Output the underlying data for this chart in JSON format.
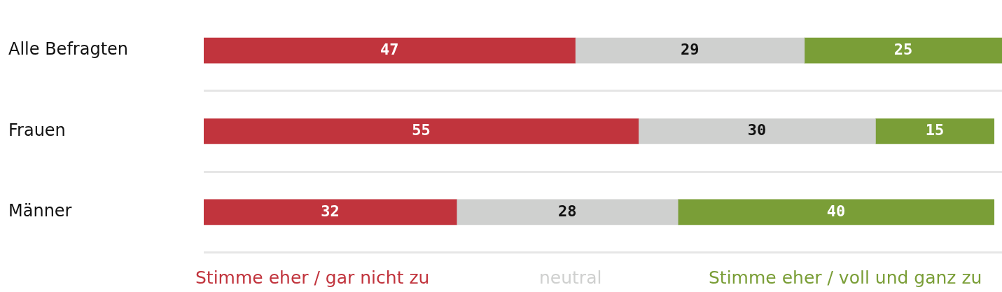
{
  "chart_data": {
    "type": "bar",
    "orientation": "horizontal",
    "stacked": true,
    "categories": [
      "Alle Befragten",
      "Frauen",
      "Männer"
    ],
    "series": [
      {
        "name": "Stimme eher / gar nicht zu",
        "color": "#c1343d",
        "values": [
          47,
          55,
          32
        ]
      },
      {
        "name": "neutral",
        "color": "#cfd0cf",
        "values": [
          29,
          30,
          28
        ]
      },
      {
        "name": "Stimme eher / voll und ganz zu",
        "color": "#7a9e37",
        "values": [
          25,
          15,
          40
        ]
      }
    ],
    "xlim": [
      0,
      101
    ],
    "tick_labels": "y",
    "grid": "y",
    "data_labels": true,
    "legend": "bottom"
  }
}
